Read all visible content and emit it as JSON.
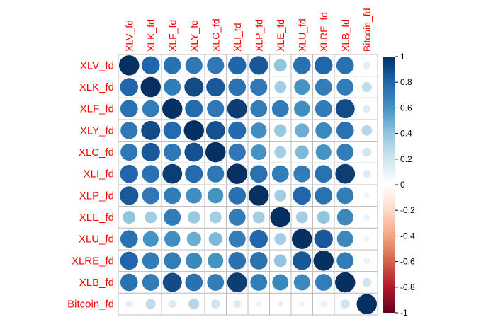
{
  "chart_data": {
    "type": "heatmap",
    "style": "correlation circle matrix",
    "title": "",
    "variables": [
      "XLV_fd",
      "XLK_fd",
      "XLF_fd",
      "XLY_fd",
      "XLC_fd",
      "XLI_fd",
      "XLP_fd",
      "XLE_fd",
      "XLU_fd",
      "XLRE_fd",
      "XLB_fd",
      "Bitcoin_fd"
    ],
    "label_color": "#ff0000",
    "grid": true,
    "legend_position": "right",
    "colorbar": {
      "min": -1,
      "max": 1,
      "ticks": [
        "1",
        "0.8",
        "0.6",
        "0.4",
        "0.2",
        "0",
        "-0.2",
        "-0.4",
        "-0.6",
        "-0.8",
        "-1"
      ],
      "colors": [
        "#67001f",
        "#b2182b",
        "#d6604d",
        "#f4a582",
        "#fddbc7",
        "#ffffff",
        "#d1e5f0",
        "#92c5de",
        "#4393c3",
        "#2166ac",
        "#053061"
      ]
    },
    "values": [
      [
        1.0,
        0.8,
        0.75,
        0.72,
        0.72,
        0.8,
        0.85,
        0.4,
        0.75,
        0.8,
        0.75,
        0.12
      ],
      [
        0.8,
        1.0,
        0.7,
        0.9,
        0.85,
        0.75,
        0.72,
        0.35,
        0.6,
        0.7,
        0.7,
        0.25
      ],
      [
        0.75,
        0.7,
        1.0,
        0.78,
        0.72,
        0.95,
        0.7,
        0.7,
        0.62,
        0.7,
        0.9,
        0.15
      ],
      [
        0.72,
        0.9,
        0.78,
        1.0,
        0.88,
        0.78,
        0.62,
        0.38,
        0.5,
        0.65,
        0.75,
        0.28
      ],
      [
        0.72,
        0.85,
        0.72,
        0.88,
        1.0,
        0.72,
        0.6,
        0.35,
        0.45,
        0.6,
        0.7,
        0.2
      ],
      [
        0.8,
        0.75,
        0.95,
        0.78,
        0.72,
        1.0,
        0.75,
        0.7,
        0.7,
        0.75,
        0.95,
        0.15
      ],
      [
        0.85,
        0.72,
        0.7,
        0.62,
        0.6,
        0.75,
        1.0,
        0.35,
        0.8,
        0.75,
        0.7,
        0.08
      ],
      [
        0.4,
        0.35,
        0.7,
        0.38,
        0.35,
        0.7,
        0.35,
        1.0,
        0.35,
        0.4,
        0.65,
        0.1
      ],
      [
        0.75,
        0.6,
        0.62,
        0.5,
        0.45,
        0.7,
        0.8,
        0.35,
        1.0,
        0.85,
        0.65,
        0.08
      ],
      [
        0.8,
        0.7,
        0.7,
        0.65,
        0.6,
        0.75,
        0.75,
        0.4,
        0.85,
        1.0,
        0.7,
        0.1
      ],
      [
        0.75,
        0.7,
        0.9,
        0.75,
        0.7,
        0.95,
        0.7,
        0.65,
        0.65,
        0.7,
        1.0,
        0.2
      ],
      [
        0.12,
        0.25,
        0.15,
        0.28,
        0.2,
        0.15,
        0.08,
        0.1,
        0.08,
        0.1,
        0.2,
        1.0
      ]
    ]
  }
}
